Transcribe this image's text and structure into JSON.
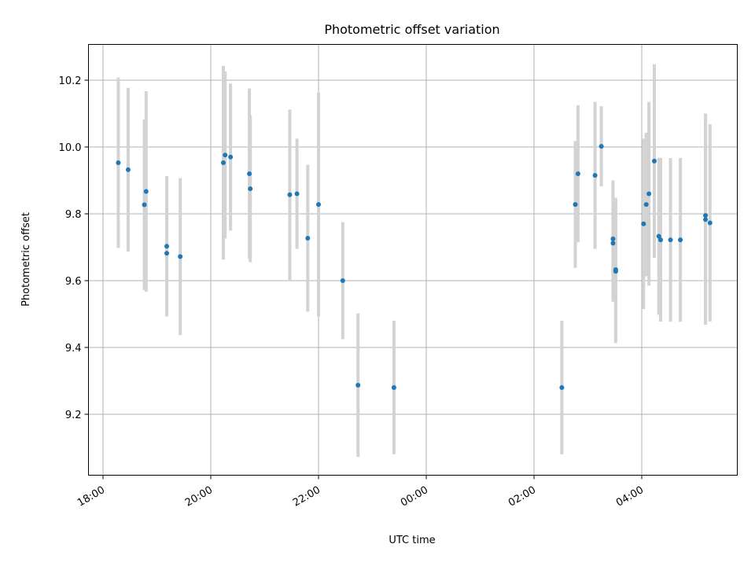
{
  "chart_data": {
    "type": "scatter",
    "title": "Photometric offset variation",
    "xlabel": "UTC time",
    "ylabel": "Photometric offset",
    "x_ticks": [
      "18:00",
      "20:00",
      "22:00",
      "00:00",
      "02:00",
      "04:00"
    ],
    "y_ticks": [
      "9.2",
      "9.4",
      "9.6",
      "9.8",
      "10.0",
      "10.2"
    ],
    "xlim": [
      "17:43",
      "05:51 (next day)"
    ],
    "ylim": [
      9.02,
      10.31
    ],
    "grid": true,
    "legend": "none",
    "colors": {
      "marker": "#1f77b4",
      "errorbar": "#d3d3d3",
      "grid": "#b0b0b0"
    },
    "points": [
      {
        "time": "18:17",
        "y": 9.953,
        "err": 0.255
      },
      {
        "time": "18:28",
        "y": 9.932,
        "err": 0.245
      },
      {
        "time": "18:46",
        "y": 9.827,
        "err": 0.255
      },
      {
        "time": "18:48",
        "y": 9.867,
        "err": 0.3
      },
      {
        "time": "19:11",
        "y": 9.703,
        "err": 0.21
      },
      {
        "time": "19:11",
        "y": 9.682,
        "err": 0.185
      },
      {
        "time": "19:26",
        "y": 9.672,
        "err": 0.235
      },
      {
        "time": "20:14",
        "y": 9.953,
        "err": 0.29
      },
      {
        "time": "20:16",
        "y": 9.976,
        "err": 0.25
      },
      {
        "time": "20:22",
        "y": 9.97,
        "err": 0.22
      },
      {
        "time": "20:43",
        "y": 9.92,
        "err": 0.255
      },
      {
        "time": "20:44",
        "y": 9.875,
        "err": 0.22
      },
      {
        "time": "21:28",
        "y": 9.857,
        "err": 0.255
      },
      {
        "time": "21:36",
        "y": 9.86,
        "err": 0.165
      },
      {
        "time": "21:48",
        "y": 9.727,
        "err": 0.22
      },
      {
        "time": "22:00",
        "y": 9.828,
        "err": 0.335
      },
      {
        "time": "22:27",
        "y": 9.6,
        "err": 0.175
      },
      {
        "time": "22:44",
        "y": 9.287,
        "err": 0.215
      },
      {
        "time": "23:24",
        "y": 9.28,
        "err": 0.2
      },
      {
        "time": "02:31",
        "y": 9.28,
        "err": 0.2
      },
      {
        "time": "02:46",
        "y": 9.828,
        "err": 0.19
      },
      {
        "time": "02:49",
        "y": 9.92,
        "err": 0.205
      },
      {
        "time": "03:08",
        "y": 9.915,
        "err": 0.22
      },
      {
        "time": "03:15",
        "y": 10.002,
        "err": 0.12
      },
      {
        "time": "03:28",
        "y": 9.725,
        "err": 0.175
      },
      {
        "time": "03:28",
        "y": 9.712,
        "err": 0.175
      },
      {
        "time": "03:31",
        "y": 9.633,
        "err": 0.215
      },
      {
        "time": "03:31",
        "y": 9.628,
        "err": 0.215
      },
      {
        "time": "04:02",
        "y": 9.77,
        "err": 0.255
      },
      {
        "time": "04:05",
        "y": 9.828,
        "err": 0.215
      },
      {
        "time": "04:08",
        "y": 9.86,
        "err": 0.275
      },
      {
        "time": "04:14",
        "y": 9.958,
        "err": 0.29
      },
      {
        "time": "04:19",
        "y": 9.733,
        "err": 0.235
      },
      {
        "time": "04:21",
        "y": 9.722,
        "err": 0.245
      },
      {
        "time": "04:32",
        "y": 9.722,
        "err": 0.245
      },
      {
        "time": "04:43",
        "y": 9.722,
        "err": 0.245
      },
      {
        "time": "05:11",
        "y": 9.795,
        "err": 0.305
      },
      {
        "time": "05:11",
        "y": 9.783,
        "err": 0.315
      },
      {
        "time": "05:16",
        "y": 9.773,
        "err": 0.295
      }
    ]
  }
}
